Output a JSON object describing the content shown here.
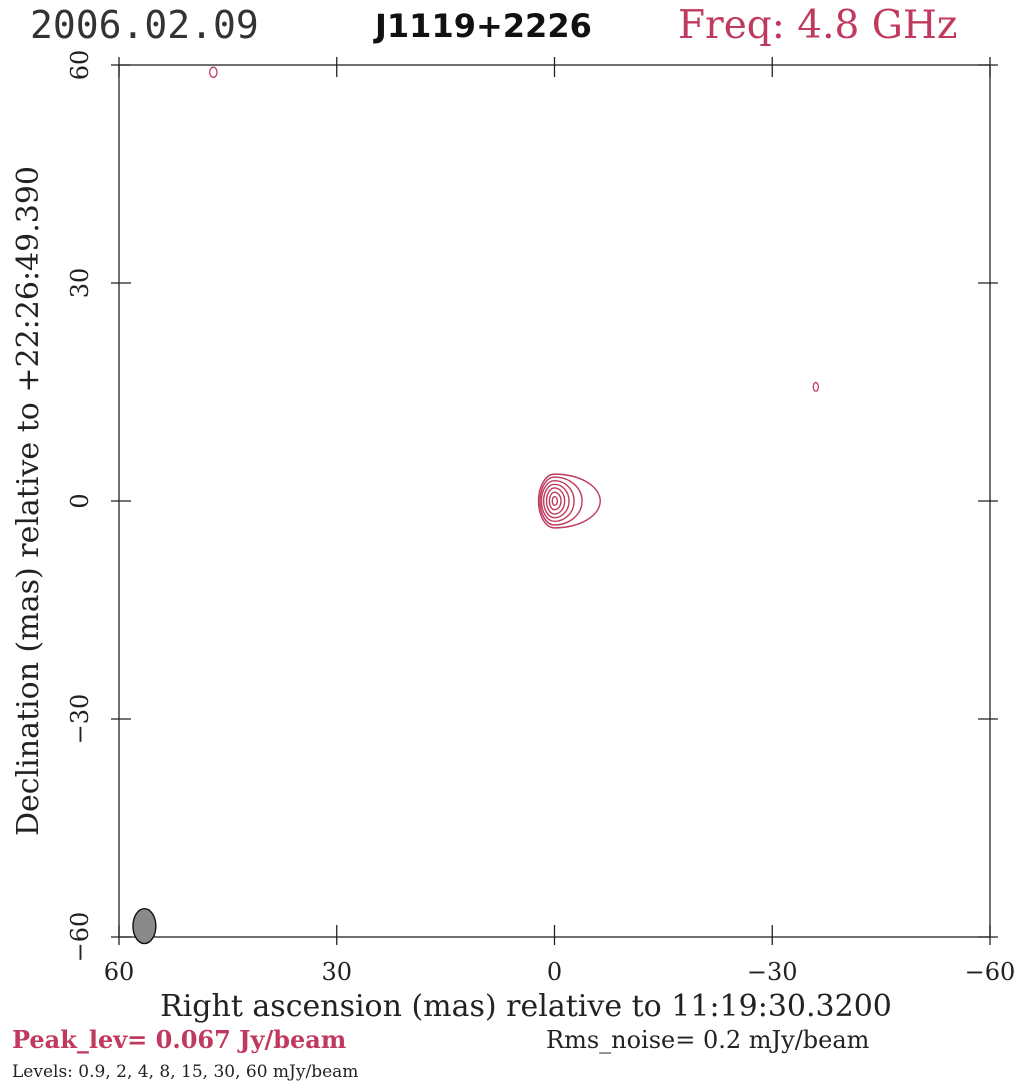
{
  "header": {
    "date": "2006.02.09",
    "source": "J1119+2226",
    "freq": "Freq: 4.8 GHz"
  },
  "footer": {
    "peak": "Peak_lev=  0.067 Jy/beam",
    "rms": "Rms_noise=  0.2 mJy/beam",
    "levels": "Levels: 0.9,   2,   4,   8,  15,  30,  60 mJy/beam"
  },
  "colors": {
    "contour": "#c0395e",
    "beam_fill": "#8a8a8a",
    "text": "#222222"
  },
  "chart_data": {
    "type": "contour",
    "xlabel": "Right ascension (mas) relative to 11:19:30.3200",
    "ylabel": "Declination (mas) relative to +22:26:49.390",
    "xlim": [
      60,
      -60
    ],
    "ylim": [
      -60,
      60
    ],
    "xticks": [
      60,
      30,
      0,
      -30,
      -60
    ],
    "yticks": [
      60,
      30,
      0,
      -30,
      -60
    ],
    "xtick_labels": [
      "60",
      "30",
      "0",
      "−30",
      "−60"
    ],
    "ytick_labels": [
      "60",
      "30",
      "0",
      "−30",
      "−60"
    ],
    "contour_levels_mJy": [
      0.9,
      2,
      4,
      8,
      15,
      30,
      60
    ],
    "peak_Jy_per_beam": 0.067,
    "rms_mJy_per_beam": 0.2,
    "main_component": {
      "center": [
        0,
        0
      ],
      "contours": [
        {
          "dx_left": 2.2,
          "dx_right": 6.3,
          "dy": 3.7
        },
        {
          "dx_left": 2.0,
          "dx_right": 3.8,
          "dy": 3.3
        },
        {
          "dx_left": 1.8,
          "dx_right": 2.7,
          "dy": 2.8
        },
        {
          "dx_left": 1.5,
          "dx_right": 2.0,
          "dy": 2.3
        },
        {
          "dx_left": 1.1,
          "dx_right": 1.4,
          "dy": 1.8
        },
        {
          "dx_left": 0.7,
          "dx_right": 0.9,
          "dy": 1.2
        },
        {
          "dx_left": 0.3,
          "dx_right": 0.4,
          "dy": 0.6
        }
      ]
    },
    "noise_blobs": [
      {
        "x": 47,
        "y": 59,
        "rx": 0.5,
        "ry": 0.7
      },
      {
        "x": -36,
        "y": 15.7,
        "rx": 0.35,
        "ry": 0.6
      }
    ],
    "beam": {
      "x": 56.5,
      "y": -58.5,
      "major": 3.2,
      "minor": 2.1,
      "pa_deg": 0
    }
  }
}
